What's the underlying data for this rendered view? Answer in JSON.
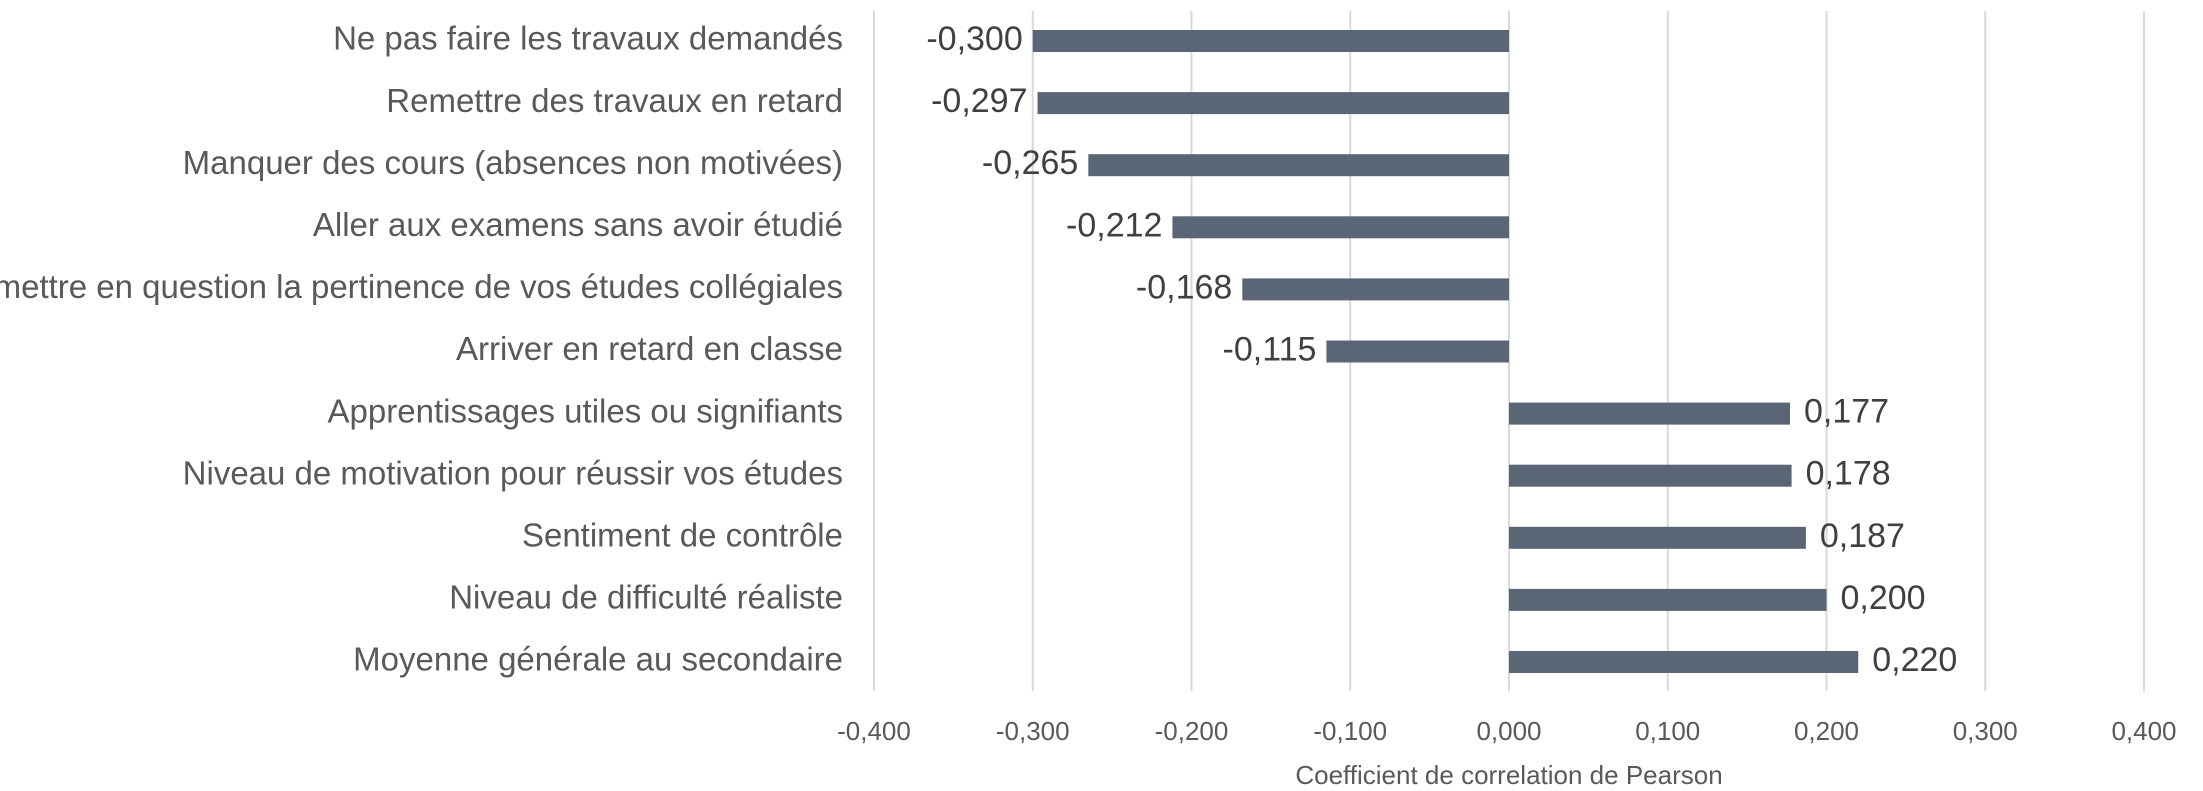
{
  "chart_data": {
    "type": "bar",
    "orientation": "horizontal",
    "x_label": "Coefficient de correlation de Pearson",
    "categories": [
      "Ne pas faire les travaux demandés",
      "Remettre des travaux en retard",
      "Manquer des cours (absences non motivées)",
      "Aller aux examens sans avoir étudié",
      "Remettre en question la pertinence de vos études collégiales",
      "Arriver en retard en classe",
      "Apprentissages utiles ou signifiants",
      "Niveau de motivation pour réussir vos études",
      "Sentiment de contrôle",
      "Niveau de difficulté réaliste",
      "Moyenne générale au secondaire"
    ],
    "values": [
      -0.3,
      -0.297,
      -0.265,
      -0.212,
      -0.168,
      -0.115,
      0.177,
      0.178,
      0.187,
      0.2,
      0.22
    ],
    "value_labels": [
      "-0,300",
      "-0,297",
      "-0,265",
      "-0,212",
      "-0,168",
      "-0,115",
      "0,177",
      "0,178",
      "0,187",
      "0,200",
      "0,220"
    ],
    "color": "#5a6576",
    "xlim": [
      -0.4,
      0.4
    ],
    "xticks": [
      {
        "value": -0.4,
        "label": "-0,400"
      },
      {
        "value": -0.3,
        "label": "-0,300"
      },
      {
        "value": -0.2,
        "label": "-0,200"
      },
      {
        "value": -0.1,
        "label": "-0,100"
      },
      {
        "value": 0,
        "label": "0,000"
      },
      {
        "value": 0.1,
        "label": "0,100"
      },
      {
        "value": 0.2,
        "label": "0,200"
      },
      {
        "value": 0.3,
        "label": "0,300"
      },
      {
        "value": 0.4,
        "label": "0,400"
      }
    ],
    "grid": true
  }
}
